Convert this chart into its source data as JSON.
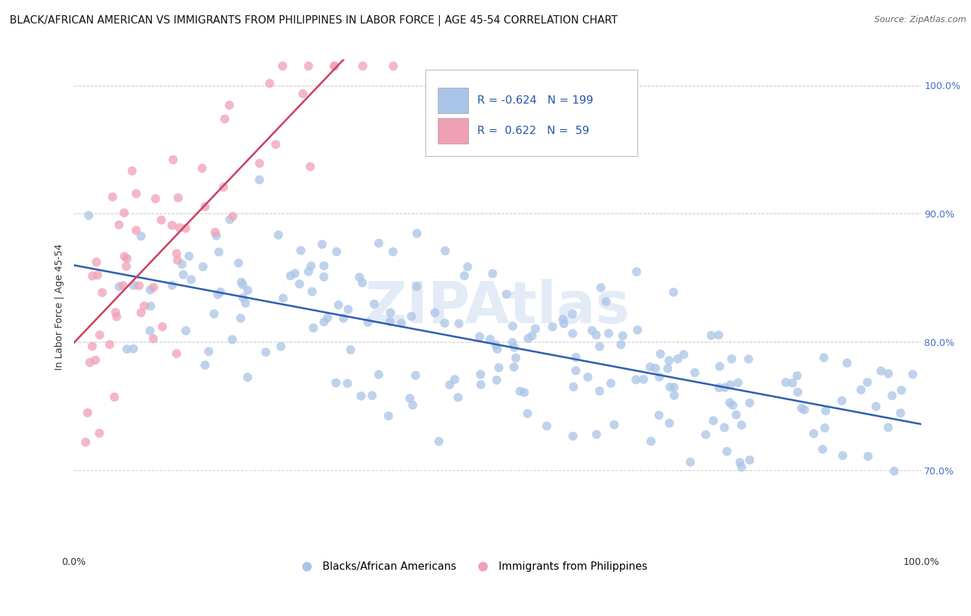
{
  "title": "BLACK/AFRICAN AMERICAN VS IMMIGRANTS FROM PHILIPPINES IN LABOR FORCE | AGE 45-54 CORRELATION CHART",
  "source": "Source: ZipAtlas.com",
  "ylabel": "In Labor Force | Age 45-54",
  "blue_R": -0.624,
  "blue_N": 199,
  "pink_R": 0.622,
  "pink_N": 59,
  "blue_color": "#aac4e8",
  "pink_color": "#f0a0b5",
  "blue_line_color": "#3060b0",
  "pink_line_color": "#d04060",
  "xlim": [
    0.0,
    1.0
  ],
  "ylim": [
    0.635,
    1.02
  ],
  "yticks": [
    0.7,
    0.8,
    0.9,
    1.0
  ],
  "ytick_labels": [
    "70.0%",
    "80.0%",
    "90.0%",
    "100.0%"
  ],
  "xticks": [
    0.0,
    1.0
  ],
  "xtick_labels": [
    "0.0%",
    "100.0%"
  ],
  "legend_label_blue": "Blacks/African Americans",
  "legend_label_pink": "Immigrants from Philippines",
  "watermark": "ZIPAtlas",
  "background_color": "#ffffff",
  "grid_color": "#cccccc",
  "title_fontsize": 11,
  "axis_fontsize": 10,
  "tick_fontsize": 10
}
